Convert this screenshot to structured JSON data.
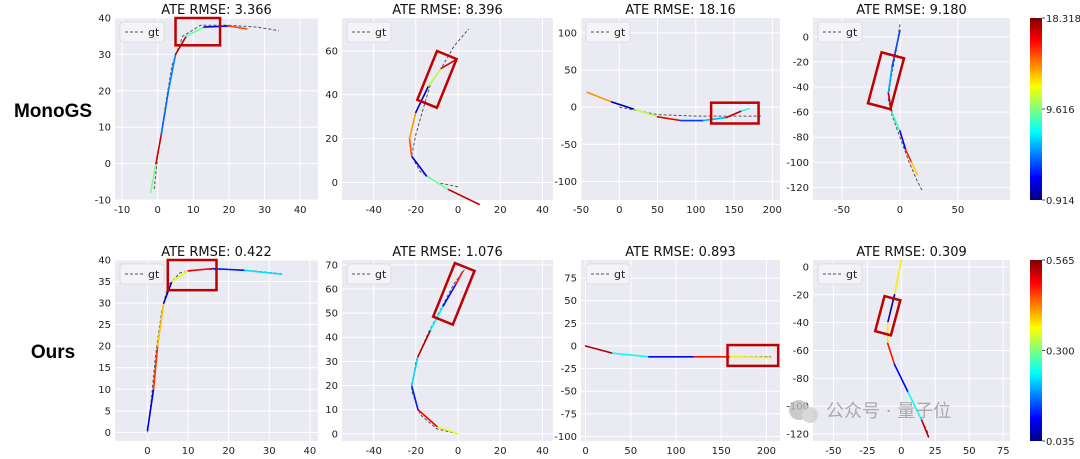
{
  "row_labels": [
    "MonoGS",
    "Ours"
  ],
  "legend_label": "gt",
  "watermark": "公众号 · 量子位",
  "colormap": [
    "#00007f",
    "#0000ff",
    "#007fff",
    "#00ffff",
    "#7fff7f",
    "#ffff00",
    "#ff7f00",
    "#ff0000",
    "#7f0000"
  ],
  "highlight_color": "#c00000",
  "chart_data": [
    {
      "type": "line",
      "row": 0,
      "col": 0,
      "title": "ATE RMSE: 3.366",
      "xlim": [
        -12,
        45
      ],
      "ylim": [
        -10,
        40
      ],
      "xticks": [
        -10,
        0,
        10,
        20,
        30,
        40
      ],
      "yticks": [
        -10,
        0,
        10,
        20,
        30,
        40
      ],
      "gt": [
        [
          -1,
          -7
        ],
        [
          0,
          2
        ],
        [
          2,
          15
        ],
        [
          4,
          27
        ],
        [
          7,
          35
        ],
        [
          12,
          38
        ],
        [
          20,
          38
        ],
        [
          28,
          37.5
        ],
        [
          34,
          36.5
        ]
      ],
      "est": [
        [
          -2,
          -8
        ],
        [
          -0.5,
          0
        ],
        [
          1,
          8
        ],
        [
          3,
          20
        ],
        [
          5,
          30
        ],
        [
          8,
          35
        ],
        [
          13,
          37.5
        ],
        [
          20,
          37.8
        ],
        [
          25,
          37
        ]
      ],
      "highlight": {
        "x": [
          5,
          17.5
        ],
        "y": [
          32.5,
          40
        ]
      }
    },
    {
      "type": "line",
      "row": 0,
      "col": 1,
      "title": "ATE RMSE: 8.396",
      "xlim": [
        -55,
        45
      ],
      "ylim": [
        -8,
        75
      ],
      "xticks": [
        -40,
        -20,
        0,
        20,
        40
      ],
      "yticks": [
        0,
        20,
        40,
        60
      ],
      "gt": [
        [
          0,
          -2
        ],
        [
          -10,
          0
        ],
        [
          -18,
          5
        ],
        [
          -22,
          12
        ],
        [
          -20,
          22
        ],
        [
          -17,
          32
        ],
        [
          -13,
          45
        ],
        [
          -8,
          52
        ],
        [
          -2,
          62
        ],
        [
          5,
          70
        ]
      ],
      "est": [
        [
          10,
          -10
        ],
        [
          -5,
          -3
        ],
        [
          -15,
          3
        ],
        [
          -22,
          12
        ],
        [
          -23,
          20
        ],
        [
          -20,
          32
        ],
        [
          -14,
          44
        ],
        [
          -8,
          52
        ],
        [
          -1,
          56
        ]
      ],
      "highlight": {
        "cx": -10,
        "cy": 47,
        "w": 10,
        "h": 24,
        "angle": 22
      }
    },
    {
      "type": "line",
      "row": 0,
      "col": 2,
      "title": "ATE RMSE: 18.16",
      "xlim": [
        -50,
        210
      ],
      "ylim": [
        -125,
        120
      ],
      "xticks": [
        -50,
        0,
        50,
        100,
        150,
        200
      ],
      "yticks": [
        -100,
        -50,
        0,
        50,
        100
      ],
      "gt": [
        [
          0,
          0
        ],
        [
          50,
          -10
        ],
        [
          100,
          -12
        ],
        [
          150,
          -12
        ],
        [
          185,
          -12
        ]
      ],
      "est": [
        [
          -42,
          20
        ],
        [
          -10,
          7
        ],
        [
          20,
          -3
        ],
        [
          50,
          -13
        ],
        [
          80,
          -18
        ],
        [
          110,
          -18
        ],
        [
          140,
          -14
        ],
        [
          160,
          -5
        ],
        [
          170,
          -2
        ]
      ],
      "highlight": {
        "x": [
          120,
          182
        ],
        "y": [
          -22,
          6
        ]
      }
    },
    {
      "type": "line",
      "row": 0,
      "col": 3,
      "title": "ATE RMSE: 9.180",
      "xlim": [
        -75,
        95
      ],
      "ylim": [
        -130,
        15
      ],
      "xticks": [
        -50,
        0,
        50
      ],
      "yticks": [
        -120,
        -100,
        -80,
        -60,
        -40,
        -20,
        0
      ],
      "gt": [
        [
          0,
          10
        ],
        [
          -3,
          -10
        ],
        [
          -8,
          -35
        ],
        [
          -10,
          -50
        ],
        [
          -7,
          -62
        ],
        [
          0,
          -80
        ],
        [
          8,
          -100
        ],
        [
          15,
          -115
        ],
        [
          19,
          -122
        ]
      ],
      "est": [
        [
          0,
          5
        ],
        [
          -7,
          -25
        ],
        [
          -10,
          -45
        ],
        [
          -7,
          -60
        ],
        [
          0,
          -75
        ],
        [
          5,
          -90
        ],
        [
          10,
          -100
        ],
        [
          15,
          -110
        ]
      ],
      "highlight": {
        "cx": -12,
        "cy": -35,
        "w": 20,
        "h": 42,
        "angle": 15
      }
    },
    {
      "type": "line",
      "row": 1,
      "col": 0,
      "title": "ATE RMSE: 0.422",
      "xlim": [
        -8,
        42
      ],
      "ylim": [
        -2,
        40
      ],
      "xticks": [
        0,
        10,
        20,
        30,
        40
      ],
      "yticks": [
        0,
        5,
        10,
        15,
        20,
        25,
        30,
        35,
        40
      ],
      "gt": [
        [
          0,
          0
        ],
        [
          1,
          8
        ],
        [
          2,
          18
        ],
        [
          3.5,
          28
        ],
        [
          5,
          34
        ],
        [
          8,
          37
        ],
        [
          13,
          37.8
        ],
        [
          20,
          37.8
        ],
        [
          27,
          37.4
        ],
        [
          33,
          36.8
        ]
      ],
      "est": [
        [
          0,
          0.5
        ],
        [
          1.5,
          10
        ],
        [
          2.5,
          20
        ],
        [
          4,
          30
        ],
        [
          6,
          35
        ],
        [
          10,
          37.5
        ],
        [
          16,
          38
        ],
        [
          24,
          37.6
        ],
        [
          33,
          36.7
        ]
      ],
      "highlight": {
        "x": [
          5,
          17
        ],
        "y": [
          33,
          40
        ]
      }
    },
    {
      "type": "line",
      "row": 1,
      "col": 1,
      "title": "ATE RMSE: 1.076",
      "xlim": [
        -55,
        45
      ],
      "ylim": [
        -3,
        72
      ],
      "xticks": [
        -40,
        -20,
        0,
        20,
        40
      ],
      "yticks": [
        0,
        10,
        20,
        30,
        40,
        50,
        60,
        70
      ],
      "gt": [
        [
          0,
          0
        ],
        [
          -10,
          2
        ],
        [
          -18,
          8
        ],
        [
          -22,
          18
        ],
        [
          -20,
          30
        ],
        [
          -14,
          42
        ],
        [
          -8,
          52
        ],
        [
          -2,
          62
        ],
        [
          3,
          68
        ]
      ],
      "est": [
        [
          0,
          0
        ],
        [
          -10,
          3
        ],
        [
          -19,
          10
        ],
        [
          -22,
          20
        ],
        [
          -19,
          32
        ],
        [
          -13,
          43
        ],
        [
          -7,
          53
        ],
        [
          -1,
          62
        ],
        [
          2,
          67
        ]
      ],
      "highlight": {
        "cx": -2,
        "cy": 58,
        "w": 10,
        "h": 24,
        "angle": 22
      }
    },
    {
      "type": "line",
      "row": 1,
      "col": 2,
      "title": "ATE RMSE: 0.893",
      "xlim": [
        -5,
        215
      ],
      "ylim": [
        -105,
        95
      ],
      "xticks": [
        0,
        50,
        100,
        150,
        200
      ],
      "yticks": [
        -100,
        -75,
        -50,
        -25,
        0,
        25,
        50,
        75
      ],
      "gt": [
        [
          0,
          0
        ],
        [
          30,
          -8
        ],
        [
          70,
          -12
        ],
        [
          120,
          -12
        ],
        [
          160,
          -12
        ],
        [
          205,
          -12
        ]
      ],
      "est": [
        [
          0,
          0
        ],
        [
          30,
          -8
        ],
        [
          70,
          -12
        ],
        [
          120,
          -12
        ],
        [
          160,
          -12
        ],
        [
          205,
          -13
        ]
      ],
      "highlight": {
        "x": [
          157,
          213
        ],
        "y": [
          -22,
          1
        ]
      }
    },
    {
      "type": "line",
      "row": 1,
      "col": 3,
      "title": "ATE RMSE: 0.309",
      "xlim": [
        -65,
        80
      ],
      "ylim": [
        -125,
        5
      ],
      "xticks": [
        -50,
        -25,
        0,
        25,
        50,
        75
      ],
      "yticks": [
        -120,
        -100,
        -80,
        -60,
        -40,
        -20,
        0
      ],
      "gt": [
        [
          0,
          5
        ],
        [
          -5,
          -20
        ],
        [
          -10,
          -40
        ],
        [
          -10,
          -55
        ],
        [
          -5,
          -70
        ],
        [
          5,
          -90
        ],
        [
          15,
          -110
        ],
        [
          20,
          -120
        ]
      ],
      "est": [
        [
          0,
          5
        ],
        [
          -5,
          -20
        ],
        [
          -10,
          -40
        ],
        [
          -10,
          -55
        ],
        [
          -5,
          -70
        ],
        [
          5,
          -90
        ],
        [
          15,
          -110
        ],
        [
          20,
          -122
        ]
      ],
      "highlight": {
        "cx": -10,
        "cy": -35,
        "w": 12,
        "h": 26,
        "angle": 15
      }
    }
  ],
  "colorbars": [
    {
      "row": 0,
      "max_label": "18.318",
      "mid_label": "9.616",
      "min_label": "0.914"
    },
    {
      "row": 1,
      "max_label": "0.565",
      "mid_label": "0.300",
      "min_label": "0.035"
    }
  ]
}
